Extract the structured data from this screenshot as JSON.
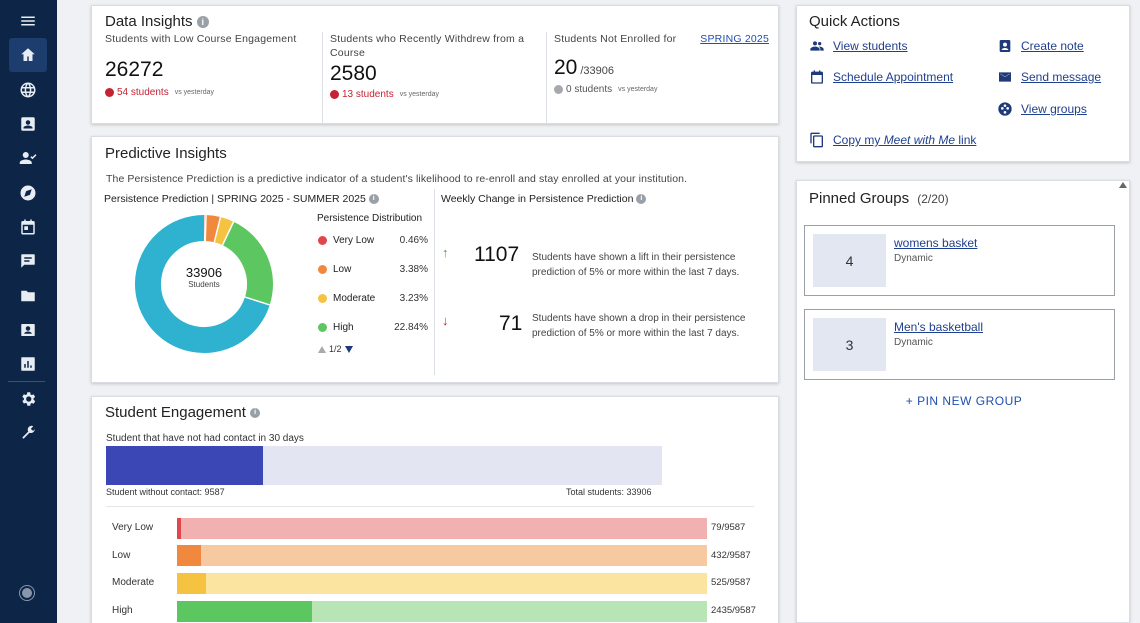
{
  "sidebar": {
    "icons": [
      "menu-icon",
      "home-icon",
      "globe-icon",
      "contact-card-icon",
      "person-check-icon",
      "compass-icon",
      "calendar-icon",
      "chat-icon",
      "folder-icon",
      "id-badge-icon",
      "report-icon",
      "settings-icon",
      "wrench-icon"
    ]
  },
  "data_insights": {
    "title": "Data Insights",
    "cols": [
      {
        "label": "Students with Low Course Engagement",
        "value": "26272",
        "delta": "54 students",
        "vs": "vs yesterday"
      },
      {
        "label": "Students who Recently Withdrew from a Course",
        "value": "2580",
        "delta": "13 students",
        "vs": "vs yesterday"
      },
      {
        "label": "Students Not Enrolled for",
        "term": "SPRING 2025",
        "value": "20",
        "value_total": "/33906",
        "delta": "0 students",
        "vs": "vs yesterday"
      }
    ]
  },
  "quick_actions": {
    "title": "Quick Actions",
    "view_students": "View students",
    "create_note": "Create note",
    "schedule_appointment": "Schedule Appointment",
    "send_message": "Send message",
    "view_groups": "View groups",
    "copy_link_prefix": "Copy my ",
    "copy_link_italic": "Meet with Me",
    "copy_link_suffix": " link"
  },
  "predictive": {
    "title": "Predictive Insights",
    "description": "The Persistence Prediction is a predictive indicator of a student's likelihood to re-enroll and stay enrolled at your institution.",
    "prediction_label": "Persistence Prediction | SPRING 2025 - SUMMER 2025",
    "donut_total": "33906",
    "donut_unit": "Students",
    "distribution_title": "Persistence Distribution",
    "legend": [
      {
        "label": "Very Low",
        "value": "0.46%",
        "color": "#e0474c"
      },
      {
        "label": "Low",
        "value": "3.38%",
        "color": "#f0883e"
      },
      {
        "label": "Moderate",
        "value": "3.23%",
        "color": "#f5c242"
      },
      {
        "label": "High",
        "value": "22.84%",
        "color": "#5cc660"
      }
    ],
    "donut_segments": [
      {
        "name": "very-low",
        "value": 0.46,
        "color": "#e0474c"
      },
      {
        "name": "low",
        "value": 3.38,
        "color": "#f0883e"
      },
      {
        "name": "moderate",
        "value": 3.23,
        "color": "#f5c242"
      },
      {
        "name": "high",
        "value": 22.84,
        "color": "#5cc660"
      },
      {
        "name": "remaining",
        "value": 70.09,
        "color": "#2eb2cf"
      }
    ],
    "pager": "1/2",
    "weekly_title": "Weekly Change in Persistence Prediction",
    "lift_value": "1107",
    "lift_text": "Students have shown a lift in their persistence prediction of 5% or more within the last 7 days.",
    "drop_value": "71",
    "drop_text": "Students have shown a drop in their persistence prediction of 5% or more within the last 7 days."
  },
  "engagement": {
    "title": "Student Engagement",
    "no_contact_label": "Student that have not had contact in 30 days",
    "no_contact_fraction": 0.2827,
    "without_contact": "Student without contact: 9587",
    "total_students": "Total students: 33906",
    "rows": [
      {
        "label": "Very Low",
        "count": "79/9587",
        "fraction": 0.0082,
        "light": "#f2b1b1",
        "dark": "#e0474c"
      },
      {
        "label": "Low",
        "count": "432/9587",
        "fraction": 0.0451,
        "light": "#f7c9a0",
        "dark": "#f0883e"
      },
      {
        "label": "Moderate",
        "count": "525/9587",
        "fraction": 0.0548,
        "light": "#fbe3a0",
        "dark": "#f5c242"
      },
      {
        "label": "High",
        "count": "2435/9587",
        "fraction": 0.254,
        "light": "#b7e5b5",
        "dark": "#5cc660"
      }
    ]
  },
  "pinned_groups": {
    "title": "Pinned Groups",
    "count": "(2/20)",
    "groups": [
      {
        "count": "4",
        "name": "womens basket",
        "type": "Dynamic"
      },
      {
        "count": "3",
        "name": "Men's basketball",
        "type": "Dynamic"
      }
    ],
    "pin_new": "+ PIN NEW GROUP"
  }
}
